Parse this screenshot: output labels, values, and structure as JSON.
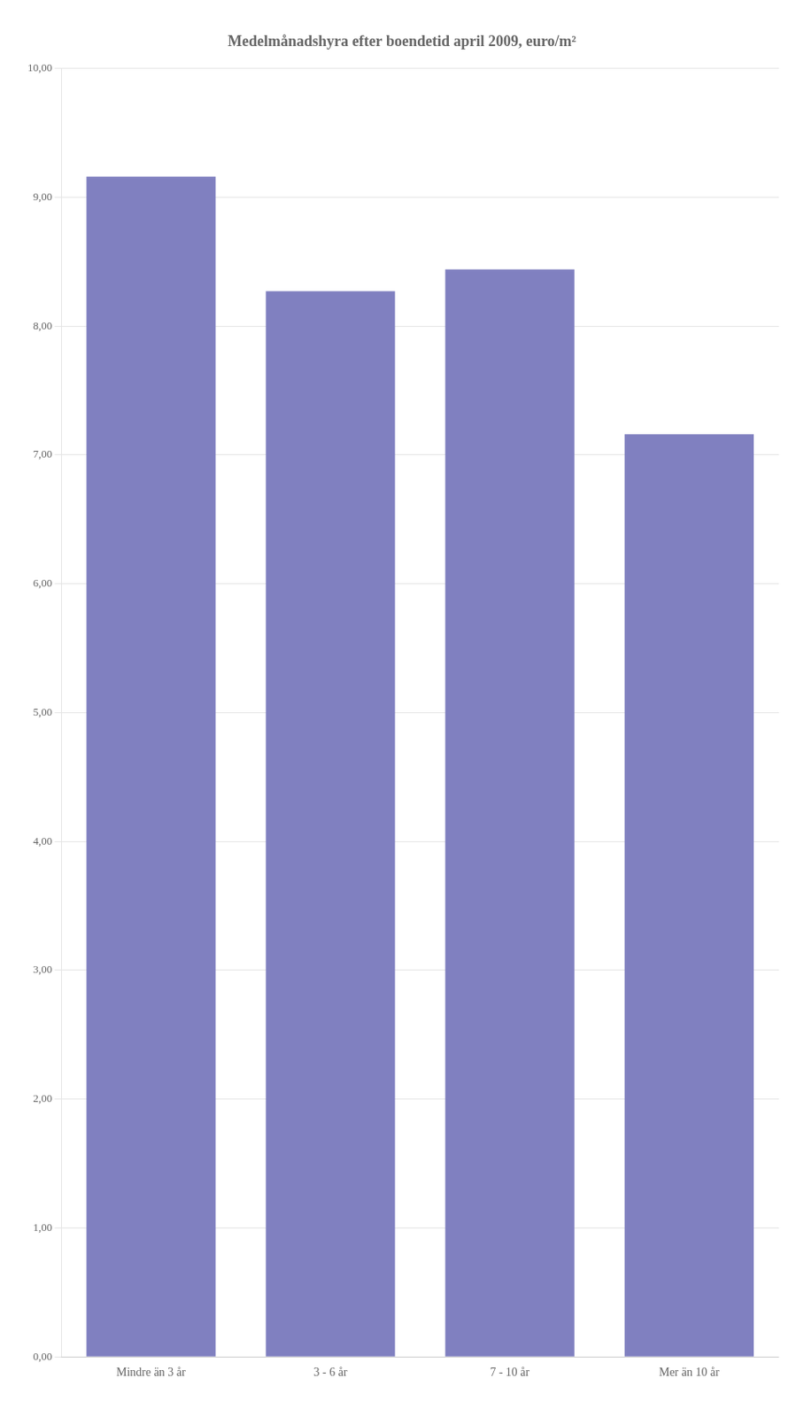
{
  "chart_data": {
    "type": "bar",
    "title": "Medelmånadshyra efter boendetid april 2009, euro/m²",
    "categories": [
      "Mindre än 3 år",
      "3 - 6 år",
      "7 - 10 år",
      "Mer än 10 år"
    ],
    "values": [
      9.16,
      8.27,
      8.44,
      7.16
    ],
    "color": "#8080c0",
    "ylim": [
      0,
      10
    ],
    "yticks": [
      {
        "value": 0,
        "label": "0,00"
      },
      {
        "value": 1,
        "label": "1,00"
      },
      {
        "value": 2,
        "label": "2,00"
      },
      {
        "value": 3,
        "label": "3,00"
      },
      {
        "value": 4,
        "label": "4,00"
      },
      {
        "value": 5,
        "label": "5,00"
      },
      {
        "value": 6,
        "label": "6,00"
      },
      {
        "value": 7,
        "label": "7,00"
      },
      {
        "value": 8,
        "label": "8,00"
      },
      {
        "value": 9,
        "label": "9,00"
      },
      {
        "value": 10,
        "label": "10,00"
      }
    ],
    "grid": true
  }
}
